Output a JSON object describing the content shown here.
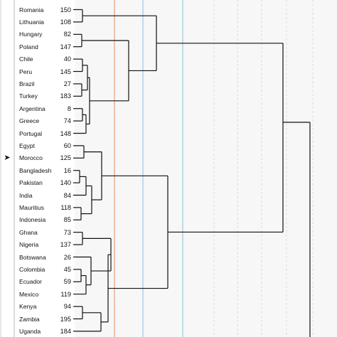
{
  "rows": [
    {
      "label": "Romania",
      "number": "150"
    },
    {
      "label": "Lithuania",
      "number": "108"
    },
    {
      "label": "Hungary",
      "number": "82"
    },
    {
      "label": "Poland",
      "number": "147"
    },
    {
      "label": "Chile",
      "number": "40"
    },
    {
      "label": "Peru",
      "number": "145"
    },
    {
      "label": "Brazil",
      "number": "27"
    },
    {
      "label": "Turkey",
      "number": "183"
    },
    {
      "label": "Argentina",
      "number": "8"
    },
    {
      "label": "Greece",
      "number": "74"
    },
    {
      "label": "Portugal",
      "number": "148"
    },
    {
      "label": "Egypt",
      "number": "60"
    },
    {
      "label": "Morocco",
      "number": "125"
    },
    {
      "label": "Bangladesh",
      "number": "16"
    },
    {
      "label": "Pakistan",
      "number": "140"
    },
    {
      "label": "India",
      "number": "84"
    },
    {
      "label": "Mauritius",
      "number": "118"
    },
    {
      "label": "Indonesia",
      "number": "85"
    },
    {
      "label": "Ghana",
      "number": "73"
    },
    {
      "label": "Nigeria",
      "number": "137"
    },
    {
      "label": "Botswana",
      "number": "26"
    },
    {
      "label": "Colombia",
      "number": "45"
    },
    {
      "label": "Ecuador",
      "number": "59"
    },
    {
      "label": "Mexico",
      "number": "119"
    },
    {
      "label": "Kenya",
      "number": "94"
    },
    {
      "label": "Zambia",
      "number": "195"
    },
    {
      "label": "Uganda",
      "number": "184"
    }
  ],
  "selected_marker": "➤",
  "colors": {
    "line": "#111111",
    "orange_guide": "#e8a07a",
    "blue_guide": "#9cc8e8",
    "grid": "#d9d9d9",
    "band": "#f7f7f7"
  }
}
